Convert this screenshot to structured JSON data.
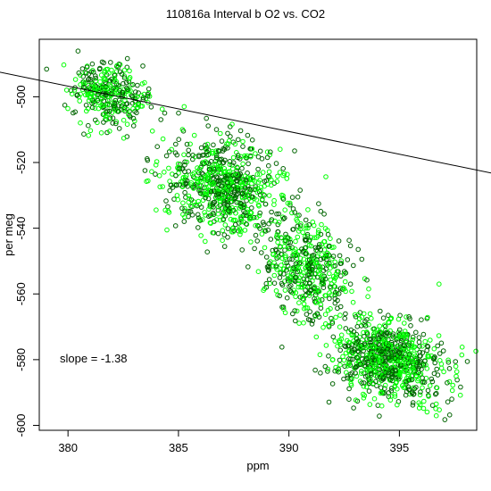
{
  "chart_data": {
    "type": "scatter",
    "title": "110816a   Interval b O2 vs. CO2",
    "xlabel": "ppm",
    "ylabel": "per meg",
    "xlim": [
      378.7,
      398.5
    ],
    "ylim": [
      -601.5,
      -482.5
    ],
    "x_ticks": [
      380,
      385,
      390,
      395
    ],
    "y_ticks": [
      -500,
      -520,
      -540,
      -560,
      -580,
      -600
    ],
    "annotation": "slope =  -1.38",
    "fit_line": {
      "slope": -1.38,
      "intercept": -500.5,
      "x0": 382.7
    },
    "series_colors": [
      "#006400",
      "#00ff00"
    ],
    "clusters": [
      {
        "cx": 382.0,
        "cy": -499.0,
        "sx": 0.9,
        "sy": 5.0,
        "n": 320
      },
      {
        "cx": 387.0,
        "cy": -527.0,
        "sx": 1.3,
        "sy": 7.0,
        "n": 700
      },
      {
        "cx": 390.8,
        "cy": -552.0,
        "sx": 1.0,
        "sy": 7.5,
        "n": 450
      },
      {
        "cx": 394.5,
        "cy": -580.0,
        "sx": 1.2,
        "sy": 6.0,
        "n": 800
      }
    ]
  }
}
